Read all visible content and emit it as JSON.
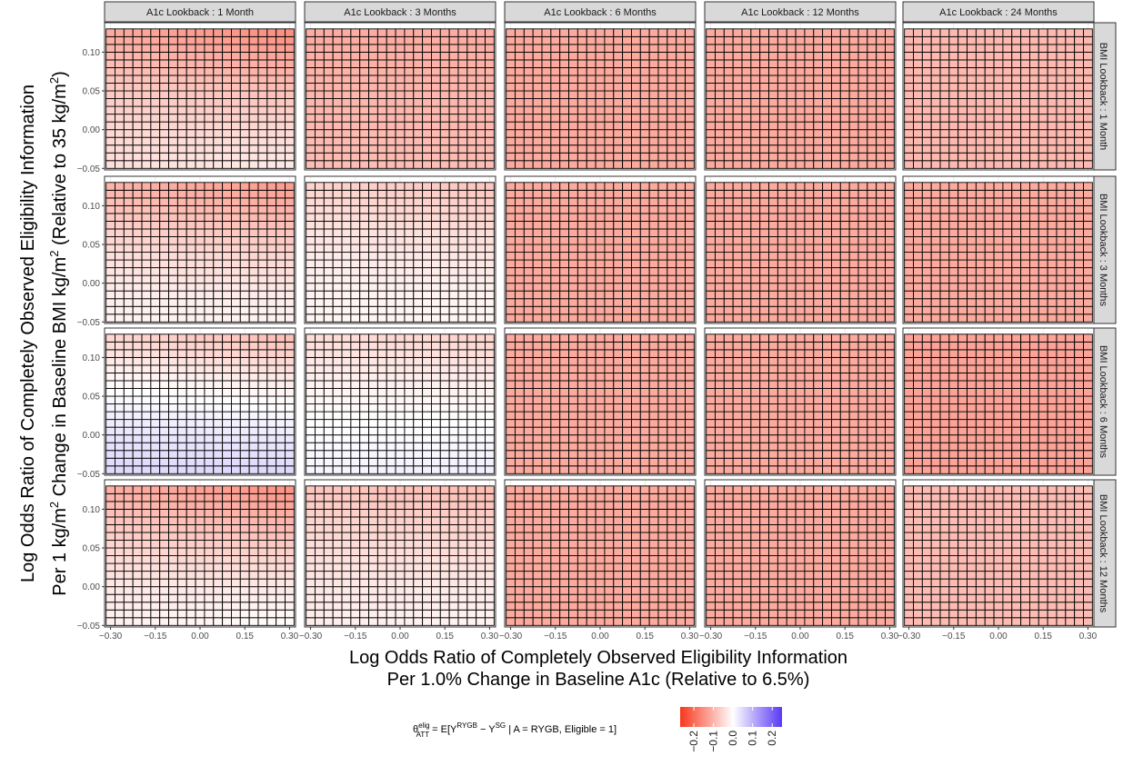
{
  "chart_data": {
    "type": "heatmap",
    "facet_columns": [
      "A1c Lookback : 1 Month",
      "A1c Lookback : 3 Months",
      "A1c Lookback : 6 Months",
      "A1c Lookback : 12 Months",
      "A1c Lookback : 24 Months"
    ],
    "facet_rows": [
      "BMI Lookback : 1 Month",
      "BMI Lookback : 3 Months",
      "BMI Lookback : 6 Months",
      "BMI Lookback : 12 Months"
    ],
    "x_ticks": [
      -0.3,
      -0.15,
      0.0,
      0.15,
      0.3
    ],
    "x_tick_labels": [
      "−0.30",
      "−0.15",
      "0.00",
      "0.15",
      "0.30"
    ],
    "y_ticks": [
      -0.05,
      0.0,
      0.05,
      0.1
    ],
    "y_tick_labels": [
      "−0.05",
      "0.00",
      "0.05",
      "0.10"
    ],
    "xlim": [
      -0.32,
      0.32
    ],
    "ylim": [
      -0.052,
      0.138
    ],
    "grid": {
      "x_from": -0.3,
      "x_to": 0.3,
      "x_count": 21,
      "y_from": -0.045,
      "y_to": 0.125,
      "y_count": 18
    },
    "xlabel_lines": [
      "Log Odds Ratio of Completely Observed Eligibility Information",
      "Per 1.0% Change in Baseline A1c (Relative to 6.5%)"
    ],
    "ylabel_line1": "Log Odds Ratio of Completely Observed Eligibility Information",
    "ylabel_line2_a": "Per 1 kg/m",
    "ylabel_line2_b": " Change in Baseline BMI kg/m",
    "ylabel_line2_c": " (Relative to  35 kg/m",
    "ylabel_line2_d": ")",
    "ylabel_sup": "2",
    "legend": {
      "title_theta": "θ",
      "title_sup_elig": "elig",
      "title_sub_att": "ATT",
      "title_eq_e": " = E[Y",
      "title_sup_rygb": "RYGB",
      "title_minus_y": " − Y",
      "title_sup_sg": "SG",
      "title_cond": " | A = RYGB, Eligible = 1]",
      "ticks": [
        -0.2,
        -0.1,
        0.0,
        0.1,
        0.2
      ],
      "tick_labels": [
        "−0.2",
        "−0.1",
        "0.0",
        "0.1",
        "0.2"
      ],
      "range": [
        -0.27,
        0.25
      ],
      "colors": {
        "low": "#f8371c",
        "mid": "#ffffff",
        "high": "#5a39f5"
      }
    },
    "panel_params": [
      [
        {
          "base": -0.145,
          "dx": -0.06,
          "dy": -0.85,
          "dxy": -0.5
        },
        {
          "base": -0.115,
          "dx": 0.0,
          "dy": -0.2,
          "dxy": 0.0
        },
        {
          "base": -0.115,
          "dx": 0.0,
          "dy": 0.0,
          "dxy": 0.0
        },
        {
          "base": -0.115,
          "dx": 0.0,
          "dy": 0.0,
          "dxy": 0.0
        },
        {
          "base": -0.095,
          "dx": 0.0,
          "dy": 0.0,
          "dxy": 0.0
        }
      ],
      [
        {
          "base": -0.13,
          "dx": -0.05,
          "dy": -0.9,
          "dxy": -0.3
        },
        {
          "base": -0.075,
          "dx": -0.03,
          "dy": -0.5,
          "dxy": -0.2
        },
        {
          "base": -0.115,
          "dx": 0.0,
          "dy": 0.0,
          "dxy": 0.0
        },
        {
          "base": -0.115,
          "dx": 0.0,
          "dy": 0.0,
          "dxy": 0.0
        },
        {
          "base": -0.115,
          "dx": 0.0,
          "dy": 0.0,
          "dxy": 0.0
        }
      ],
      [
        {
          "base": -0.085,
          "dx": -0.05,
          "dy": -1.05,
          "dxy": -0.3
        },
        {
          "base": -0.06,
          "dx": -0.02,
          "dy": -0.6,
          "dxy": -0.2
        },
        {
          "base": -0.115,
          "dx": 0.0,
          "dy": 0.0,
          "dxy": 0.0
        },
        {
          "base": -0.115,
          "dx": 0.0,
          "dy": 0.0,
          "dxy": 0.0
        },
        {
          "base": -0.125,
          "dx": 0.0,
          "dy": 0.0,
          "dxy": 0.0
        }
      ],
      [
        {
          "base": -0.14,
          "dx": -0.06,
          "dy": -1.0,
          "dxy": -0.5
        },
        {
          "base": -0.09,
          "dx": -0.02,
          "dy": -0.55,
          "dxy": -0.2
        },
        {
          "base": -0.115,
          "dx": 0.0,
          "dy": 0.0,
          "dxy": 0.0
        },
        {
          "base": -0.115,
          "dx": 0.0,
          "dy": 0.0,
          "dxy": 0.0
        },
        {
          "base": -0.09,
          "dx": 0.0,
          "dy": 0.0,
          "dxy": 0.0
        }
      ]
    ]
  }
}
